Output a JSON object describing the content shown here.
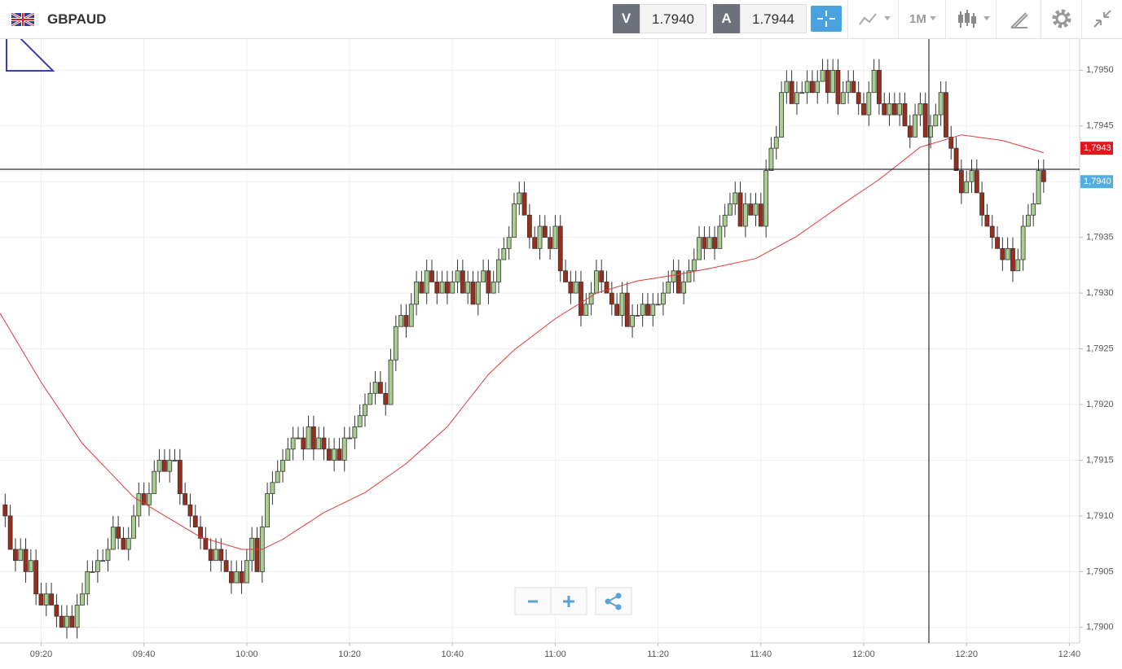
{
  "header": {
    "symbol": "GBPAUD",
    "bid_label": "V",
    "bid": "1.7940",
    "ask_label": "A",
    "ask": "1.7944",
    "timeframe": "1M"
  },
  "chart_data": {
    "type": "candlestick",
    "up_color": "#a9cf8f",
    "down_color": "#9c2d1c",
    "grid": true,
    "xlim": [
      "09:12",
      "12:42"
    ],
    "xticks": [
      "09:20",
      "09:40",
      "10:00",
      "10:20",
      "10:40",
      "11:00",
      "11:20",
      "11:40",
      "12:00",
      "12:20",
      "12:40"
    ],
    "ylim": [
      1.78986,
      1.79528
    ],
    "yticks": [
      {
        "value": 1.79,
        "label": "1,7900"
      },
      {
        "value": 1.7905,
        "label": "1,7905"
      },
      {
        "value": 1.791,
        "label": "1,7910"
      },
      {
        "value": 1.7915,
        "label": "1,7915"
      },
      {
        "value": 1.792,
        "label": "1,7920"
      },
      {
        "value": 1.7925,
        "label": "1,7925"
      },
      {
        "value": 1.793,
        "label": "1,7930"
      },
      {
        "value": 1.7935,
        "label": "1,7935"
      },
      {
        "value": 1.794,
        "label": "1,7940"
      },
      {
        "value": 1.7945,
        "label": "1,7945"
      },
      {
        "value": 1.795,
        "label": "1,7950"
      }
    ],
    "x": [
      "09:13",
      "09:14",
      "09:15",
      "09:16",
      "09:17",
      "09:18",
      "09:19",
      "09:20",
      "09:21",
      "09:22",
      "09:23",
      "09:24",
      "09:25",
      "09:26",
      "09:27",
      "09:28",
      "09:29",
      "09:30",
      "09:31",
      "09:32",
      "09:33",
      "09:34",
      "09:35",
      "09:36",
      "09:37",
      "09:38",
      "09:39",
      "09:40",
      "09:41",
      "09:42",
      "09:43",
      "09:44",
      "09:45",
      "09:46",
      "09:47",
      "09:48",
      "09:49",
      "09:50",
      "09:51",
      "09:52",
      "09:53",
      "09:54",
      "09:55",
      "09:56",
      "09:57",
      "09:58",
      "09:59",
      "10:00",
      "10:01",
      "10:02",
      "10:03",
      "10:04",
      "10:05",
      "10:06",
      "10:07",
      "10:08",
      "10:09",
      "10:10",
      "10:11",
      "10:12",
      "10:13",
      "10:14",
      "10:15",
      "10:16",
      "10:17",
      "10:18",
      "10:19",
      "10:20",
      "10:21",
      "10:22",
      "10:23",
      "10:24",
      "10:25",
      "10:26",
      "10:27",
      "10:28",
      "10:29",
      "10:30",
      "10:31",
      "10:32",
      "10:33",
      "10:34",
      "10:35",
      "10:36",
      "10:37",
      "10:38",
      "10:39",
      "10:40",
      "10:41",
      "10:42",
      "10:43",
      "10:44",
      "10:45",
      "10:46",
      "10:47",
      "10:48",
      "10:49",
      "10:50",
      "10:51",
      "10:52",
      "10:53",
      "10:54",
      "10:55",
      "10:56",
      "10:57",
      "10:58",
      "10:59",
      "11:00",
      "11:01",
      "11:02",
      "11:03",
      "11:04",
      "11:05",
      "11:06",
      "11:07",
      "11:08",
      "11:09",
      "11:10",
      "11:11",
      "11:12",
      "11:13",
      "11:14",
      "11:15",
      "11:16",
      "11:17",
      "11:18",
      "11:19",
      "11:20",
      "11:21",
      "11:22",
      "11:23",
      "11:24",
      "11:25",
      "11:26",
      "11:27",
      "11:28",
      "11:29",
      "11:30",
      "11:31",
      "11:32",
      "11:33",
      "11:34",
      "11:35",
      "11:36",
      "11:37",
      "11:38",
      "11:39",
      "11:40",
      "11:41",
      "11:42",
      "11:43",
      "11:44",
      "11:45",
      "11:46",
      "11:47",
      "11:48",
      "11:49",
      "11:50",
      "11:51",
      "11:52",
      "11:53",
      "11:54",
      "11:55",
      "11:56",
      "11:57",
      "11:58",
      "11:59",
      "12:00",
      "12:01",
      "12:02",
      "12:03",
      "12:04",
      "12:05",
      "12:06",
      "12:07",
      "12:08",
      "12:09",
      "12:10",
      "12:11",
      "12:12",
      "12:13",
      "12:14",
      "12:15",
      "12:16",
      "12:17",
      "12:18",
      "12:19",
      "12:20",
      "12:21",
      "12:22",
      "12:23",
      "12:24",
      "12:25",
      "12:26",
      "12:27",
      "12:28",
      "12:29",
      "12:30",
      "12:31",
      "12:32",
      "12:33",
      "12:34",
      "12:35"
    ],
    "open": [
      1.7911,
      1.791,
      1.7907,
      1.7906,
      1.7907,
      1.7905,
      1.7906,
      1.7903,
      1.7902,
      1.7903,
      1.7902,
      1.7901,
      1.79,
      1.7901,
      1.79,
      1.7902,
      1.7903,
      1.7905,
      1.7905,
      1.7906,
      1.7906,
      1.7907,
      1.7909,
      1.7908,
      1.7907,
      1.7908,
      1.791,
      1.7912,
      1.7911,
      1.7912,
      1.7914,
      1.7915,
      1.7914,
      1.7915,
      1.7915,
      1.7912,
      1.7911,
      1.791,
      1.7909,
      1.7908,
      1.7907,
      1.7906,
      1.7907,
      1.7906,
      1.7905,
      1.7904,
      1.7905,
      1.7904,
      1.7906,
      1.7908,
      1.7905,
      1.7909,
      1.7912,
      1.7913,
      1.7914,
      1.7915,
      1.7916,
      1.7917,
      1.7917,
      1.7916,
      1.7918,
      1.7916,
      1.7917,
      1.7916,
      1.7915,
      1.7916,
      1.7915,
      1.7917,
      1.7917,
      1.7918,
      1.7919,
      1.792,
      1.7921,
      1.7922,
      1.7921,
      1.792,
      1.7924,
      1.7927,
      1.7928,
      1.7927,
      1.7929,
      1.7931,
      1.793,
      1.7932,
      1.7931,
      1.793,
      1.7931,
      1.793,
      1.7931,
      1.7932,
      1.793,
      1.7931,
      1.7929,
      1.7931,
      1.7932,
      1.793,
      1.7931,
      1.7933,
      1.7934,
      1.7935,
      1.7938,
      1.7939,
      1.7937,
      1.7935,
      1.7934,
      1.7936,
      1.7935,
      1.7934,
      1.7936,
      1.7932,
      1.7931,
      1.793,
      1.7931,
      1.7928,
      1.7929,
      1.793,
      1.7932,
      1.7931,
      1.793,
      1.7929,
      1.7928,
      1.793,
      1.7927,
      1.7928,
      1.7928,
      1.7929,
      1.7928,
      1.7929,
      1.7929,
      1.793,
      1.7931,
      1.7932,
      1.793,
      1.7931,
      1.7932,
      1.7933,
      1.7935,
      1.7934,
      1.7935,
      1.7934,
      1.7936,
      1.7937,
      1.7938,
      1.7939,
      1.7936,
      1.7938,
      1.7937,
      1.7938,
      1.7936,
      1.7941,
      1.7943,
      1.7944,
      1.7948,
      1.7949,
      1.7947,
      1.7948,
      1.7948,
      1.7949,
      1.7948,
      1.7949,
      1.795,
      1.7948,
      1.795,
      1.7947,
      1.7948,
      1.7949,
      1.7948,
      1.7947,
      1.7946,
      1.7948,
      1.795,
      1.7947,
      1.7946,
      1.7947,
      1.7946,
      1.7947,
      1.7945,
      1.7944,
      1.7946,
      1.7947,
      1.7944,
      1.7945,
      1.7946,
      1.7948,
      1.7944,
      1.7943,
      1.7941,
      1.7939,
      1.794,
      1.7941,
      1.7939,
      1.7937,
      1.7936,
      1.7935,
      1.7934,
      1.7933,
      1.7934,
      1.7932,
      1.7933,
      1.7936,
      1.7937,
      1.7938,
      1.7941
    ],
    "high": [
      1.7912,
      1.7911,
      1.7908,
      1.7908,
      1.7908,
      1.7907,
      1.7907,
      1.7904,
      1.7904,
      1.7904,
      1.7903,
      1.7902,
      1.7902,
      1.7902,
      1.7903,
      1.7904,
      1.7906,
      1.7906,
      1.7907,
      1.7907,
      1.7908,
      1.791,
      1.791,
      1.7909,
      1.7909,
      1.7911,
      1.7913,
      1.7913,
      1.7913,
      1.7915,
      1.7916,
      1.7916,
      1.7916,
      1.7916,
      1.7916,
      1.7913,
      1.7912,
      1.7911,
      1.791,
      1.7909,
      1.7908,
      1.7908,
      1.7908,
      1.7907,
      1.7906,
      1.7906,
      1.7906,
      1.7907,
      1.7909,
      1.7909,
      1.791,
      1.7913,
      1.7914,
      1.7915,
      1.7916,
      1.7917,
      1.7918,
      1.7918,
      1.7918,
      1.7919,
      1.7919,
      1.7918,
      1.7918,
      1.7917,
      1.7917,
      1.7917,
      1.7918,
      1.7918,
      1.7919,
      1.792,
      1.7921,
      1.7922,
      1.7923,
      1.7923,
      1.7922,
      1.7925,
      1.7928,
      1.7929,
      1.7929,
      1.793,
      1.7932,
      1.7932,
      1.7933,
      1.7933,
      1.7932,
      1.7932,
      1.7932,
      1.7932,
      1.7933,
      1.7933,
      1.7932,
      1.7932,
      1.7932,
      1.7933,
      1.7933,
      1.7932,
      1.7934,
      1.7935,
      1.7936,
      1.7939,
      1.794,
      1.794,
      1.7938,
      1.7936,
      1.7937,
      1.7937,
      1.7936,
      1.7937,
      1.7937,
      1.7933,
      1.7932,
      1.7932,
      1.7932,
      1.793,
      1.7931,
      1.7933,
      1.7933,
      1.7932,
      1.7931,
      1.793,
      1.7931,
      1.7931,
      1.7929,
      1.7929,
      1.793,
      1.793,
      1.793,
      1.793,
      1.7931,
      1.7932,
      1.7933,
      1.7933,
      1.7932,
      1.7933,
      1.7934,
      1.7936,
      1.7936,
      1.7936,
      1.7936,
      1.7937,
      1.7938,
      1.7939,
      1.794,
      1.794,
      1.7939,
      1.7939,
      1.7939,
      1.7939,
      1.7942,
      1.7944,
      1.7945,
      1.7949,
      1.795,
      1.795,
      1.7949,
      1.7949,
      1.795,
      1.795,
      1.795,
      1.7951,
      1.7951,
      1.7951,
      1.7951,
      1.7949,
      1.795,
      1.795,
      1.7949,
      1.7948,
      1.7949,
      1.7951,
      1.7951,
      1.7948,
      1.7948,
      1.7948,
      1.7948,
      1.7948,
      1.7946,
      1.7947,
      1.7948,
      1.7948,
      1.7946,
      1.7947,
      1.7949,
      1.7949,
      1.7945,
      1.7944,
      1.7942,
      1.7941,
      1.7942,
      1.7942,
      1.794,
      1.7938,
      1.7937,
      1.7936,
      1.7935,
      1.7935,
      1.7935,
      1.7934,
      1.7937,
      1.7938,
      1.7939,
      1.7942,
      1.7942
    ],
    "low": [
      1.7909,
      1.7907,
      1.7905,
      1.7906,
      1.7904,
      1.7905,
      1.7902,
      1.7902,
      1.7901,
      1.7902,
      1.79,
      1.79,
      1.7899,
      1.79,
      1.7899,
      1.7902,
      1.7902,
      1.7905,
      1.7904,
      1.7906,
      1.7905,
      1.7907,
      1.7907,
      1.7907,
      1.7906,
      1.7908,
      1.7909,
      1.7911,
      1.791,
      1.7912,
      1.7913,
      1.7914,
      1.7913,
      1.7915,
      1.7911,
      1.7911,
      1.7909,
      1.7909,
      1.7907,
      1.7907,
      1.7905,
      1.7906,
      1.7905,
      1.7905,
      1.7903,
      1.7904,
      1.7903,
      1.7904,
      1.7905,
      1.7905,
      1.7904,
      1.7909,
      1.7911,
      1.7913,
      1.7913,
      1.7915,
      1.7915,
      1.7917,
      1.7915,
      1.7916,
      1.7915,
      1.7916,
      1.7915,
      1.7915,
      1.7914,
      1.7915,
      1.7914,
      1.7917,
      1.7916,
      1.7918,
      1.7918,
      1.792,
      1.792,
      1.7921,
      1.7919,
      1.792,
      1.7923,
      1.7927,
      1.7926,
      1.7927,
      1.7928,
      1.793,
      1.7929,
      1.7931,
      1.7929,
      1.793,
      1.7929,
      1.793,
      1.793,
      1.793,
      1.7929,
      1.7929,
      1.7928,
      1.7931,
      1.7929,
      1.793,
      1.793,
      1.7933,
      1.7933,
      1.7935,
      1.7937,
      1.7937,
      1.7934,
      1.7934,
      1.7933,
      1.7935,
      1.7933,
      1.7934,
      1.7931,
      1.7931,
      1.7929,
      1.793,
      1.7927,
      1.7928,
      1.7928,
      1.793,
      1.793,
      1.793,
      1.7928,
      1.7928,
      1.7927,
      1.7927,
      1.7926,
      1.7928,
      1.7927,
      1.7928,
      1.7927,
      1.7929,
      1.7928,
      1.793,
      1.793,
      1.793,
      1.7929,
      1.7931,
      1.7931,
      1.7933,
      1.7933,
      1.7934,
      1.7933,
      1.7934,
      1.7935,
      1.7937,
      1.7937,
      1.7936,
      1.7935,
      1.7937,
      1.7936,
      1.7936,
      1.7935,
      1.7941,
      1.7942,
      1.7944,
      1.7947,
      1.7947,
      1.7946,
      1.7948,
      1.7947,
      1.7948,
      1.7947,
      1.7949,
      1.7947,
      1.7948,
      1.7946,
      1.7947,
      1.7947,
      1.7948,
      1.7946,
      1.7946,
      1.7945,
      1.7948,
      1.7946,
      1.7946,
      1.7945,
      1.7946,
      1.7945,
      1.7945,
      1.7943,
      1.7944,
      1.7945,
      1.7944,
      1.7943,
      1.7945,
      1.7945,
      1.7944,
      1.7942,
      1.7941,
      1.7938,
      1.7939,
      1.7939,
      1.7939,
      1.7936,
      1.7936,
      1.7934,
      1.7934,
      1.7932,
      1.7933,
      1.7931,
      1.7932,
      1.7932,
      1.7936,
      1.7936,
      1.7938,
      1.7939
    ],
    "close": [
      1.791,
      1.7907,
      1.7906,
      1.7907,
      1.7905,
      1.7906,
      1.7903,
      1.7902,
      1.7903,
      1.7902,
      1.7901,
      1.79,
      1.7901,
      1.79,
      1.7902,
      1.7903,
      1.7905,
      1.7905,
      1.7906,
      1.7906,
      1.7907,
      1.7909,
      1.7908,
      1.7907,
      1.7908,
      1.791,
      1.7912,
      1.7911,
      1.7912,
      1.7914,
      1.7915,
      1.7914,
      1.7915,
      1.7915,
      1.7912,
      1.7911,
      1.791,
      1.7909,
      1.7908,
      1.7907,
      1.7906,
      1.7907,
      1.7906,
      1.7905,
      1.7904,
      1.7905,
      1.7904,
      1.7906,
      1.7908,
      1.7905,
      1.7909,
      1.7912,
      1.7913,
      1.7914,
      1.7915,
      1.7916,
      1.7917,
      1.7917,
      1.7916,
      1.7918,
      1.7916,
      1.7917,
      1.7916,
      1.7915,
      1.7916,
      1.7915,
      1.7917,
      1.7917,
      1.7918,
      1.7919,
      1.792,
      1.7921,
      1.7922,
      1.7921,
      1.792,
      1.7924,
      1.7927,
      1.7928,
      1.7927,
      1.7929,
      1.7931,
      1.793,
      1.7932,
      1.7931,
      1.793,
      1.7931,
      1.793,
      1.7931,
      1.7932,
      1.793,
      1.7931,
      1.7929,
      1.7931,
      1.7932,
      1.793,
      1.7931,
      1.7933,
      1.7934,
      1.7935,
      1.7938,
      1.7939,
      1.7937,
      1.7935,
      1.7934,
      1.7936,
      1.7935,
      1.7934,
      1.7936,
      1.7932,
      1.7931,
      1.793,
      1.7931,
      1.7928,
      1.7929,
      1.793,
      1.7932,
      1.7931,
      1.793,
      1.7929,
      1.7928,
      1.793,
      1.7927,
      1.7928,
      1.7928,
      1.7929,
      1.7928,
      1.7929,
      1.7929,
      1.793,
      1.7931,
      1.7932,
      1.793,
      1.7931,
      1.7932,
      1.7933,
      1.7935,
      1.7934,
      1.7935,
      1.7934,
      1.7936,
      1.7937,
      1.7938,
      1.7939,
      1.7936,
      1.7938,
      1.7937,
      1.7938,
      1.7936,
      1.7941,
      1.7943,
      1.7944,
      1.7948,
      1.7949,
      1.7947,
      1.7948,
      1.7948,
      1.7949,
      1.7948,
      1.7949,
      1.795,
      1.7948,
      1.795,
      1.7947,
      1.7948,
      1.7949,
      1.7948,
      1.7947,
      1.7946,
      1.7948,
      1.795,
      1.7947,
      1.7946,
      1.7947,
      1.7946,
      1.7947,
      1.7945,
      1.7944,
      1.7946,
      1.7947,
      1.7944,
      1.7945,
      1.7946,
      1.7948,
      1.7944,
      1.7943,
      1.7941,
      1.7939,
      1.794,
      1.7941,
      1.7939,
      1.7937,
      1.7936,
      1.7935,
      1.7934,
      1.7933,
      1.7934,
      1.7932,
      1.7933,
      1.7936,
      1.7937,
      1.7938,
      1.7941,
      1.794
    ],
    "moving_average": {
      "color": "#e03a3a",
      "x": [
        "09:12",
        "09:20",
        "09:28",
        "09:38",
        "09:43",
        "09:51",
        "09:59",
        "10:03",
        "10:07",
        "10:15",
        "10:23",
        "10:31",
        "10:39",
        "10:47",
        "10:52",
        "11:00",
        "11:08",
        "11:16",
        "11:23",
        "11:31",
        "11:39",
        "11:47",
        "11:55",
        "12:03",
        "12:11",
        "12:19",
        "12:27",
        "12:35"
      ],
      "values": [
        1.79282,
        1.7922,
        1.79165,
        1.79117,
        1.79103,
        1.79081,
        1.7907,
        1.7907,
        1.79079,
        1.79103,
        1.79121,
        1.79147,
        1.7918,
        1.79227,
        1.79249,
        1.79277,
        1.793,
        1.79311,
        1.79316,
        1.79323,
        1.79331,
        1.79351,
        1.79377,
        1.79402,
        1.79431,
        1.79442,
        1.79437,
        1.79426
      ]
    },
    "ma_last": {
      "value": 1.7943,
      "label": "1,7943"
    },
    "last_price": {
      "value": 1.794,
      "label": "1,7940"
    }
  }
}
